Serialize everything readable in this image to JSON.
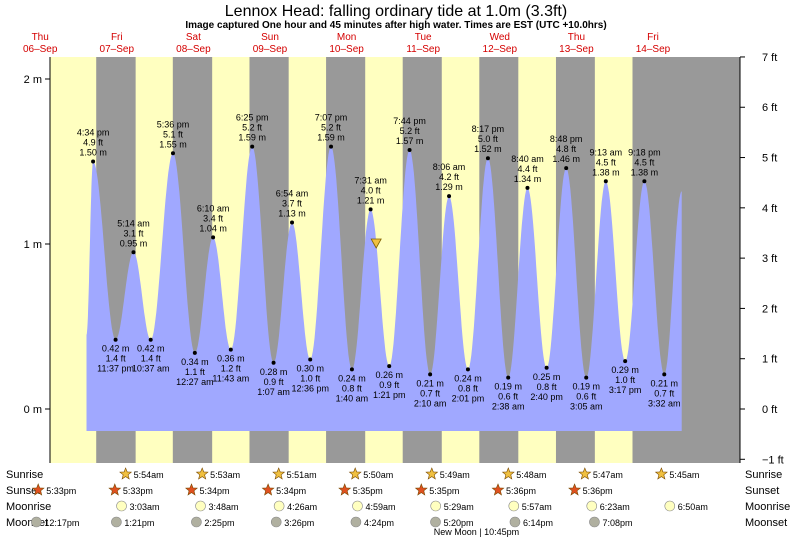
{
  "header": {
    "title": "Lennox Head: falling  ordinary tide at 1.0m (3.3ft)",
    "subtitle": "Image captured One hour and 45 minutes after high water. Times are EST (UTC +10.0hrs)"
  },
  "colors": {
    "day_band": "#ffffc0",
    "night_band": "#999999",
    "water": "#a0a8ff",
    "day_label": "#d40000",
    "sunrise_star": "#f0c040",
    "sunset_star": "#e05020",
    "moonrise": "#ffffc0",
    "moonset": "#b0b0a0"
  },
  "chart_data": {
    "type": "area",
    "y_left_label_unit": "m",
    "y_left_range": [
      -0.25,
      2.1
    ],
    "y_left_ticks": [
      "2 m",
      "1 m",
      "0 m"
    ],
    "y_right_ticks": [
      "7 ft",
      "6 ft",
      "5 ft",
      "4 ft",
      "3 ft",
      "2 ft",
      "1 ft",
      "0 ft",
      "−1 ft"
    ],
    "days": [
      {
        "dow": "Thu",
        "date": "06–Sep"
      },
      {
        "dow": "Fri",
        "date": "07–Sep"
      },
      {
        "dow": "Sat",
        "date": "08–Sep"
      },
      {
        "dow": "Sun",
        "date": "09–Sep"
      },
      {
        "dow": "Mon",
        "date": "10–Sep"
      },
      {
        "dow": "Tue",
        "date": "11–Sep"
      },
      {
        "dow": "Wed",
        "date": "12–Sep"
      },
      {
        "dow": "Thu",
        "date": "13–Sep"
      },
      {
        "dow": "Fri",
        "date": "14–Sep"
      }
    ],
    "tides": [
      {
        "type": "high",
        "day": 0,
        "hour": 16.57,
        "time": "4:34 pm",
        "ft": "4.9 ft",
        "m": "1.50 m",
        "value": 1.5
      },
      {
        "type": "low",
        "day": 0,
        "hour": 23.62,
        "time": "11:37 pm",
        "ft": "1.4 ft",
        "m": "0.42 m",
        "value": 0.42
      },
      {
        "type": "high",
        "day": 1,
        "hour": 5.23,
        "time": "5:14 am",
        "ft": "3.1 ft",
        "m": "0.95 m",
        "value": 0.95
      },
      {
        "type": "low",
        "day": 1,
        "hour": 10.62,
        "time": "10:37 am",
        "ft": "1.4 ft",
        "m": "0.42 m",
        "value": 0.42
      },
      {
        "type": "high",
        "day": 1,
        "hour": 17.6,
        "time": "5:36 pm",
        "ft": "5.1 ft",
        "m": "1.55 m",
        "value": 1.55
      },
      {
        "type": "low",
        "day": 2,
        "hour": 0.45,
        "time": "12:27 am",
        "ft": "1.1 ft",
        "m": "0.34 m",
        "value": 0.34
      },
      {
        "type": "high",
        "day": 2,
        "hour": 6.17,
        "time": "6:10 am",
        "ft": "3.4 ft",
        "m": "1.04 m",
        "value": 1.04
      },
      {
        "type": "low",
        "day": 2,
        "hour": 11.72,
        "time": "11:43 am",
        "ft": "1.2 ft",
        "m": "0.36 m",
        "value": 0.36
      },
      {
        "type": "high",
        "day": 2,
        "hour": 18.42,
        "time": "6:25 pm",
        "ft": "5.2 ft",
        "m": "1.59 m",
        "value": 1.59
      },
      {
        "type": "low",
        "day": 3,
        "hour": 1.12,
        "time": "1:07 am",
        "ft": "0.9 ft",
        "m": "0.28 m",
        "value": 0.28
      },
      {
        "type": "high",
        "day": 3,
        "hour": 6.9,
        "time": "6:54 am",
        "ft": "3.7 ft",
        "m": "1.13 m",
        "value": 1.13
      },
      {
        "type": "low",
        "day": 3,
        "hour": 12.6,
        "time": "12:36 pm",
        "ft": "1.0 ft",
        "m": "0.30 m",
        "value": 0.3
      },
      {
        "type": "high",
        "day": 3,
        "hour": 19.12,
        "time": "7:07 pm",
        "ft": "5.2 ft",
        "m": "1.59 m",
        "value": 1.59
      },
      {
        "type": "low",
        "day": 4,
        "hour": 1.67,
        "time": "1:40 am",
        "ft": "0.8 ft",
        "m": "0.24 m",
        "value": 0.24
      },
      {
        "type": "high",
        "day": 4,
        "hour": 7.52,
        "time": "7:31 am",
        "ft": "4.0 ft",
        "m": "1.21 m",
        "value": 1.21
      },
      {
        "type": "low",
        "day": 4,
        "hour": 13.35,
        "time": "1:21 pm",
        "ft": "0.9 ft",
        "m": "0.26 m",
        "value": 0.26
      },
      {
        "type": "high",
        "day": 4,
        "hour": 19.73,
        "time": "7:44 pm",
        "ft": "5.2 ft",
        "m": "1.57 m",
        "value": 1.57
      },
      {
        "type": "low",
        "day": 5,
        "hour": 2.17,
        "time": "2:10 am",
        "ft": "0.7 ft",
        "m": "0.21 m",
        "value": 0.21
      },
      {
        "type": "high",
        "day": 5,
        "hour": 8.1,
        "time": "8:06 am",
        "ft": "4.2 ft",
        "m": "1.29 m",
        "value": 1.29
      },
      {
        "type": "low",
        "day": 5,
        "hour": 14.02,
        "time": "2:01 pm",
        "ft": "0.8 ft",
        "m": "0.24 m",
        "value": 0.24
      },
      {
        "type": "high",
        "day": 5,
        "hour": 20.28,
        "time": "8:17 pm",
        "ft": "5.0 ft",
        "m": "1.52 m",
        "value": 1.52
      },
      {
        "type": "low",
        "day": 6,
        "hour": 2.63,
        "time": "2:38 am",
        "ft": "0.6 ft",
        "m": "0.19 m",
        "value": 0.19
      },
      {
        "type": "high",
        "day": 6,
        "hour": 8.67,
        "time": "8:40 am",
        "ft": "4.4 ft",
        "m": "1.34 m",
        "value": 1.34
      },
      {
        "type": "low",
        "day": 6,
        "hour": 14.67,
        "time": "2:40 pm",
        "ft": "0.8 ft",
        "m": "0.25 m",
        "value": 0.25
      },
      {
        "type": "high",
        "day": 6,
        "hour": 20.8,
        "time": "8:48 pm",
        "ft": "4.8 ft",
        "m": "1.46 m",
        "value": 1.46
      },
      {
        "type": "low",
        "day": 7,
        "hour": 3.08,
        "time": "3:05 am",
        "ft": "0.6 ft",
        "m": "0.19 m",
        "value": 0.19
      },
      {
        "type": "high",
        "day": 7,
        "hour": 9.22,
        "time": "9:13 am",
        "ft": "4.5 ft",
        "m": "1.38 m",
        "value": 1.38
      },
      {
        "type": "low",
        "day": 7,
        "hour": 15.28,
        "time": "3:17 pm",
        "ft": "1.0 ft",
        "m": "0.29 m",
        "value": 0.29
      },
      {
        "type": "high",
        "day": 7,
        "hour": 21.3,
        "time": "9:18 pm",
        "ft": "4.5 ft",
        "m": "1.38 m",
        "value": 1.38
      },
      {
        "type": "low",
        "day": 8,
        "hour": 3.53,
        "time": "3:32 am",
        "ft": "0.7 ft",
        "m": "0.21 m",
        "value": 0.21
      }
    ],
    "series_start": {
      "day": 0,
      "hour": 14.5,
      "value": 0.45
    },
    "series_end": {
      "day": 8,
      "hour": 9.0,
      "value": 1.32
    },
    "current_marker": {
      "day": 4,
      "hour": 9.27,
      "value": 1.0
    }
  },
  "sun_moon": {
    "labels": {
      "sunrise": "Sunrise",
      "sunset": "Sunset",
      "moonrise": "Moonrise",
      "moonset": "Moonset"
    },
    "sunrise": [
      {
        "day": 1,
        "hour": 5.9,
        "time": "5:54am"
      },
      {
        "day": 2,
        "hour": 5.88,
        "time": "5:53am"
      },
      {
        "day": 3,
        "hour": 5.85,
        "time": "5:51am"
      },
      {
        "day": 4,
        "hour": 5.83,
        "time": "5:50am"
      },
      {
        "day": 5,
        "hour": 5.82,
        "time": "5:49am"
      },
      {
        "day": 6,
        "hour": 5.8,
        "time": "5:48am"
      },
      {
        "day": 7,
        "hour": 5.78,
        "time": "5:47am"
      },
      {
        "day": 8,
        "hour": 5.75,
        "time": "5:45am"
      }
    ],
    "sunset": [
      {
        "day": 0,
        "hour": 17.55,
        "time": "5:33pm"
      },
      {
        "day": 1,
        "hour": 17.55,
        "time": "5:33pm"
      },
      {
        "day": 2,
        "hour": 17.57,
        "time": "5:34pm"
      },
      {
        "day": 3,
        "hour": 17.57,
        "time": "5:34pm"
      },
      {
        "day": 4,
        "hour": 17.58,
        "time": "5:35pm"
      },
      {
        "day": 5,
        "hour": 17.58,
        "time": "5:35pm"
      },
      {
        "day": 6,
        "hour": 17.6,
        "time": "5:36pm"
      },
      {
        "day": 7,
        "hour": 17.6,
        "time": "5:36pm"
      }
    ],
    "moonrise": [
      {
        "day": 1,
        "hour": 3.05,
        "time": "3:03am"
      },
      {
        "day": 2,
        "hour": 3.8,
        "time": "3:48am"
      },
      {
        "day": 3,
        "hour": 4.43,
        "time": "4:26am"
      },
      {
        "day": 4,
        "hour": 4.98,
        "time": "4:59am"
      },
      {
        "day": 5,
        "hour": 5.48,
        "time": "5:29am"
      },
      {
        "day": 6,
        "hour": 5.95,
        "time": "5:57am"
      },
      {
        "day": 7,
        "hour": 6.38,
        "time": "6:23am"
      },
      {
        "day": 8,
        "hour": 6.83,
        "time": "6:50am"
      }
    ],
    "moonset": [
      {
        "day": 0,
        "hour": 12.28,
        "time": "12:17pm"
      },
      {
        "day": 1,
        "hour": 13.35,
        "time": "1:21pm"
      },
      {
        "day": 2,
        "hour": 14.42,
        "time": "2:25pm"
      },
      {
        "day": 3,
        "hour": 15.43,
        "time": "3:26pm"
      },
      {
        "day": 4,
        "hour": 16.4,
        "time": "4:24pm"
      },
      {
        "day": 5,
        "hour": 17.33,
        "time": "5:20pm"
      },
      {
        "day": 6,
        "hour": 18.23,
        "time": "6:14pm"
      },
      {
        "day": 7,
        "hour": 19.13,
        "time": "7:08pm"
      }
    ],
    "new_moon": {
      "day": 5,
      "hour": 22.75,
      "label": "New Moon | 10:45pm"
    }
  }
}
